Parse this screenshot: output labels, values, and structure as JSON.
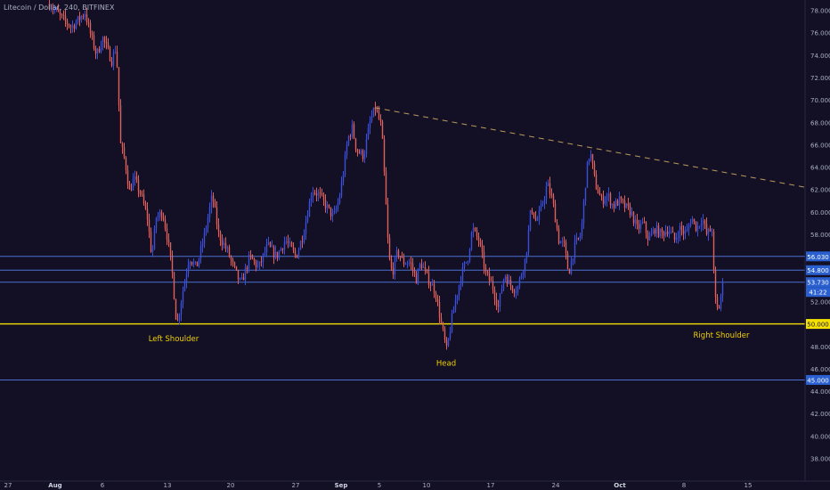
{
  "header": {
    "title": "Litecoin / Dollar, 240, BITFINEX"
  },
  "colors": {
    "background": "#131026",
    "up": "#3b4fd8",
    "down": "#e0605a",
    "axis_text": "#aab0c0",
    "hline": "#4a6fd0",
    "support": "#f5e100",
    "trendline": "#b89a5a",
    "annotation": "#f0d000",
    "price_badge": "#2a5fd0"
  },
  "chart_data": {
    "type": "candlestick",
    "title": "Litecoin / Dollar, 240, BITFINEX",
    "ylim": [
      36.5,
      79.5
    ],
    "y_ticks": [
      "78.000",
      "76.000",
      "74.000",
      "72.000",
      "70.000",
      "68.000",
      "66.000",
      "64.000",
      "62.000",
      "60.000",
      "58.000",
      "56.000",
      "54.000",
      "52.000",
      "50.000",
      "48.000",
      "46.000",
      "44.000",
      "42.000",
      "40.000",
      "38.000"
    ],
    "x_ticks": [
      "27",
      "Aug",
      "6",
      "13",
      "20",
      "27",
      "Sep",
      "5",
      "10",
      "17",
      "24",
      "Oct",
      "8",
      "15"
    ],
    "x_tick_bold": [
      "Aug",
      "Sep",
      "Oct"
    ],
    "price_path": [
      [
        0,
        79.5
      ],
      [
        55,
        78.6
      ],
      [
        70,
        77.2
      ],
      [
        80,
        76.5
      ],
      [
        95,
        77.8
      ],
      [
        100,
        76.2
      ],
      [
        108,
        74.0
      ],
      [
        115,
        75.5
      ],
      [
        125,
        73.5
      ],
      [
        130,
        74.8
      ],
      [
        135,
        66.0
      ],
      [
        140,
        64.5
      ],
      [
        145,
        61.8
      ],
      [
        150,
        63.0
      ],
      [
        158,
        61.5
      ],
      [
        165,
        59.5
      ],
      [
        170,
        56.0
      ],
      [
        175,
        59.5
      ],
      [
        182,
        60.0
      ],
      [
        188,
        57.5
      ],
      [
        193,
        54.5
      ],
      [
        198,
        49.8
      ],
      [
        205,
        53.0
      ],
      [
        212,
        56.0
      ],
      [
        220,
        55.0
      ],
      [
        228,
        57.5
      ],
      [
        238,
        61.5
      ],
      [
        245,
        58.0
      ],
      [
        255,
        56.5
      ],
      [
        262,
        55.0
      ],
      [
        270,
        53.5
      ],
      [
        280,
        56.0
      ],
      [
        290,
        55.0
      ],
      [
        300,
        57.0
      ],
      [
        310,
        56.0
      ],
      [
        320,
        57.5
      ],
      [
        332,
        56.0
      ],
      [
        340,
        58.0
      ],
      [
        350,
        62.0
      ],
      [
        358,
        61.5
      ],
      [
        366,
        60.5
      ],
      [
        374,
        59.5
      ],
      [
        380,
        61.0
      ],
      [
        385,
        63.5
      ],
      [
        390,
        66.5
      ],
      [
        395,
        67.5
      ],
      [
        400,
        65.5
      ],
      [
        408,
        65.0
      ],
      [
        415,
        68.0
      ],
      [
        421,
        69.3
      ],
      [
        428,
        67.5
      ],
      [
        432,
        62.0
      ],
      [
        436,
        56.0
      ],
      [
        440,
        54.5
      ],
      [
        446,
        56.5
      ],
      [
        452,
        55.5
      ],
      [
        460,
        55.5
      ],
      [
        467,
        54.0
      ],
      [
        472,
        55.5
      ],
      [
        480,
        54.0
      ],
      [
        488,
        53.0
      ],
      [
        495,
        50.0
      ],
      [
        501,
        47.6
      ],
      [
        507,
        50.5
      ],
      [
        512,
        52.5
      ],
      [
        518,
        54.5
      ],
      [
        525,
        56.0
      ],
      [
        530,
        58.5
      ],
      [
        537,
        57.5
      ],
      [
        545,
        54.5
      ],
      [
        552,
        53.5
      ],
      [
        559,
        51.5
      ],
      [
        566,
        54.5
      ],
      [
        572,
        53.5
      ],
      [
        580,
        53.0
      ],
      [
        585,
        54.5
      ],
      [
        590,
        56.0
      ],
      [
        596,
        60.5
      ],
      [
        602,
        59.0
      ],
      [
        608,
        60.5
      ],
      [
        614,
        62.5
      ],
      [
        620,
        61.0
      ],
      [
        627,
        57.5
      ],
      [
        633,
        57.0
      ],
      [
        638,
        54.5
      ],
      [
        645,
        57.0
      ],
      [
        652,
        58.0
      ],
      [
        658,
        63.5
      ],
      [
        662,
        65.5
      ],
      [
        668,
        62.5
      ],
      [
        675,
        61.0
      ],
      [
        682,
        61.5
      ],
      [
        688,
        60.5
      ],
      [
        695,
        61.0
      ],
      [
        701,
        60.5
      ],
      [
        708,
        60.0
      ],
      [
        715,
        58.5
      ],
      [
        722,
        59.0
      ],
      [
        728,
        57.5
      ],
      [
        735,
        58.5
      ],
      [
        742,
        58.0
      ],
      [
        750,
        58.5
      ],
      [
        757,
        57.5
      ],
      [
        763,
        58.5
      ],
      [
        770,
        58.0
      ],
      [
        776,
        59.5
      ],
      [
        782,
        58.5
      ],
      [
        788,
        59.5
      ],
      [
        793,
        58.0
      ],
      [
        799,
        58.5
      ],
      [
        802,
        52.5
      ],
      [
        806,
        51.0
      ],
      [
        811,
        53.5
      ]
    ],
    "horizontal_lines": [
      {
        "y": 56.03,
        "label": "56.030"
      },
      {
        "y": 54.8,
        "label": "54.800"
      },
      {
        "y": 53.73,
        "label": "53.730"
      },
      {
        "y": 45.0,
        "label": "45.000"
      }
    ],
    "support_line": {
      "y": 50.0,
      "label": "50.000"
    },
    "current_price": {
      "y": 53.73,
      "label": "53.730",
      "countdown": "41:22"
    },
    "trendline": {
      "x_start": "Sep 4",
      "y_start": 69.3,
      "x_end": "Oct 17",
      "y_end": 62.2
    },
    "annotations": [
      {
        "text": "Left Shoulder",
        "x": "Aug 14",
        "y": 48.7
      },
      {
        "text": "Head",
        "x": "Sep 12",
        "y": 46.5
      },
      {
        "text": "Right Shoulder",
        "x": "Oct 10",
        "y": 49.0
      }
    ]
  }
}
